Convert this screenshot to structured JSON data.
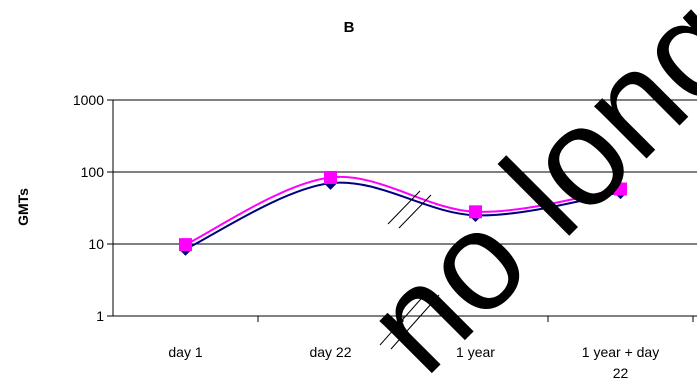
{
  "chart_data": {
    "type": "line",
    "title": "B",
    "xlabel": "",
    "ylabel": "GMTs",
    "yscale": "log",
    "ylim": [
      1,
      1000
    ],
    "yticks": [
      "1",
      "10",
      "100",
      "1000"
    ],
    "grid": "horizontal",
    "axis_break": "between day 22 and 1 year",
    "categories": [
      "day 1",
      "day 22",
      "1 year",
      "1 year + day 22"
    ],
    "series": [
      {
        "color": "#000080",
        "marker": "diamond",
        "values": [
          8.5,
          70,
          25,
          52
        ]
      },
      {
        "color": "#ff00ff",
        "marker": "square",
        "values": [
          9.8,
          84,
          28,
          58
        ]
      }
    ]
  },
  "watermark": {
    "text": "no longer a",
    "color": "#000000"
  }
}
